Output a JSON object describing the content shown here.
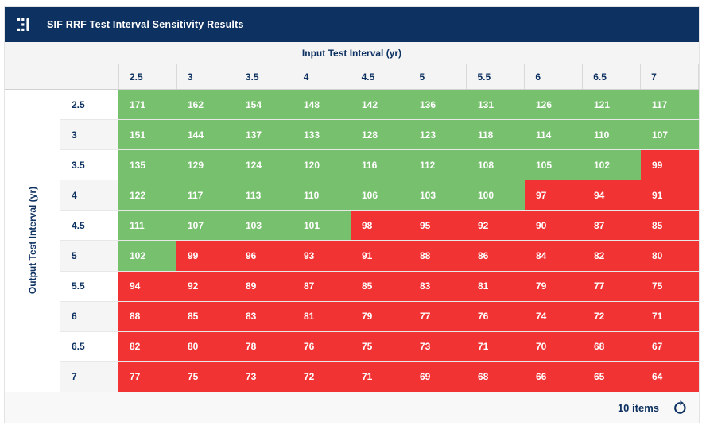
{
  "colors": {
    "navy": "#0d3161",
    "green": "#77c06d",
    "red": "#f23333",
    "header_bg": "#f4f4f4",
    "alt_row_bg": "#f5f5f5",
    "border": "#d9d9d9",
    "row_border": "#e8e8e8",
    "footer_bg": "#f8f8f8"
  },
  "titlebar": {
    "title": "SIF RRF Test Interval Sensitivity Results",
    "logo_icon": "app-logo-icon"
  },
  "table": {
    "column_group_label": "Input Test Interval (yr)",
    "row_group_label": "Output Test Interval (yr)",
    "columns": [
      "2.5",
      "3",
      "3.5",
      "4",
      "4.5",
      "5",
      "5.5",
      "6",
      "6.5",
      "7"
    ],
    "color_rules": {
      "green_min": 100
    },
    "rows": [
      {
        "label": "2.5",
        "values": [
          171,
          162,
          154,
          148,
          142,
          136,
          131,
          126,
          121,
          117
        ]
      },
      {
        "label": "3",
        "values": [
          151,
          144,
          137,
          133,
          128,
          123,
          118,
          114,
          110,
          107
        ]
      },
      {
        "label": "3.5",
        "values": [
          135,
          129,
          124,
          120,
          116,
          112,
          108,
          105,
          102,
          99
        ]
      },
      {
        "label": "4",
        "values": [
          122,
          117,
          113,
          110,
          106,
          103,
          100,
          97,
          94,
          91
        ]
      },
      {
        "label": "4.5",
        "values": [
          111,
          107,
          103,
          101,
          98,
          95,
          92,
          90,
          87,
          85
        ]
      },
      {
        "label": "5",
        "values": [
          102,
          99,
          96,
          93,
          91,
          88,
          86,
          84,
          82,
          80
        ]
      },
      {
        "label": "5.5",
        "values": [
          94,
          92,
          89,
          87,
          85,
          83,
          81,
          79,
          77,
          75
        ]
      },
      {
        "label": "6",
        "values": [
          88,
          85,
          83,
          81,
          79,
          77,
          76,
          74,
          72,
          71
        ]
      },
      {
        "label": "6.5",
        "values": [
          82,
          80,
          78,
          76,
          75,
          73,
          71,
          70,
          68,
          67
        ]
      },
      {
        "label": "7",
        "values": [
          77,
          75,
          73,
          72,
          71,
          69,
          68,
          66,
          65,
          64
        ]
      }
    ]
  },
  "footer": {
    "items_label": "10 items",
    "refresh_icon": "refresh-icon"
  }
}
